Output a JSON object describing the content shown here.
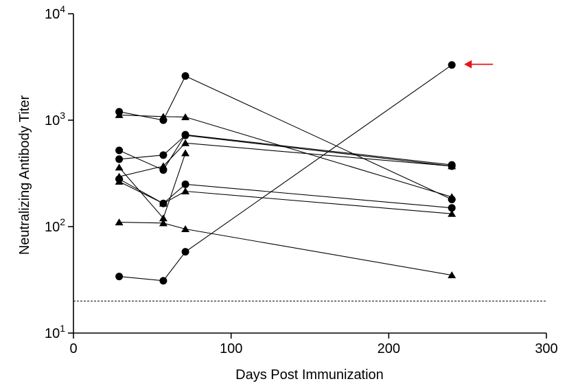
{
  "chart_data": {
    "type": "line",
    "xlabel": "Days Post Immunization",
    "ylabel": "Neutralizing Antibody Titer",
    "xlim": [
      0,
      300
    ],
    "ylim": [
      10,
      10000
    ],
    "y_scale": "log",
    "x_ticks": [
      {
        "value": 0,
        "label": "0"
      },
      {
        "value": 100,
        "label": "100"
      },
      {
        "value": 200,
        "label": "200"
      },
      {
        "value": 300,
        "label": "300"
      }
    ],
    "y_ticks": [
      {
        "value": 10,
        "base": "10",
        "exp": "1"
      },
      {
        "value": 100,
        "base": "10",
        "exp": "2"
      },
      {
        "value": 1000,
        "base": "10",
        "exp": "3"
      },
      {
        "value": 10000,
        "base": "10",
        "exp": "4"
      }
    ],
    "grid": false,
    "reference_line": {
      "y": 20,
      "style": "dashed"
    },
    "annotation": {
      "type": "arrow",
      "color": "#e8141b",
      "target": {
        "x": 240,
        "y": 3300
      }
    },
    "series": [
      {
        "marker": "circle",
        "points": [
          [
            29,
            1200
          ],
          [
            57,
            1000
          ],
          [
            71,
            2600
          ],
          [
            240,
            180
          ]
        ]
      },
      {
        "marker": "circle",
        "points": [
          [
            29,
            520
          ],
          [
            57,
            340
          ],
          [
            71,
            730
          ],
          [
            240,
            380
          ]
        ]
      },
      {
        "marker": "circle",
        "points": [
          [
            29,
            430
          ],
          [
            57,
            470
          ],
          [
            71,
            720
          ],
          [
            240,
            370
          ]
        ]
      },
      {
        "marker": "circle",
        "points": [
          [
            29,
            280
          ],
          [
            57,
            165
          ],
          [
            71,
            250
          ],
          [
            240,
            150
          ]
        ]
      },
      {
        "marker": "circle",
        "points": [
          [
            29,
            34
          ],
          [
            57,
            31
          ],
          [
            71,
            58
          ],
          [
            240,
            3300
          ]
        ]
      },
      {
        "marker": "triangle",
        "points": [
          [
            29,
            1120
          ],
          [
            57,
            1080
          ],
          [
            71,
            1070
          ],
          [
            240,
            190
          ]
        ]
      },
      {
        "marker": "triangle",
        "points": [
          [
            29,
            360
          ],
          [
            57,
            120
          ],
          [
            71,
            490
          ]
        ]
      },
      {
        "marker": "triangle",
        "points": [
          [
            29,
            295
          ],
          [
            57,
            370
          ],
          [
            71,
            610
          ],
          [
            240,
            370
          ]
        ]
      },
      {
        "marker": "triangle",
        "points": [
          [
            29,
            265
          ],
          [
            57,
            165
          ],
          [
            71,
            215
          ],
          [
            240,
            132
          ]
        ]
      },
      {
        "marker": "triangle",
        "points": [
          [
            29,
            110
          ],
          [
            57,
            108
          ],
          [
            71,
            95
          ],
          [
            240,
            35
          ]
        ]
      }
    ]
  }
}
